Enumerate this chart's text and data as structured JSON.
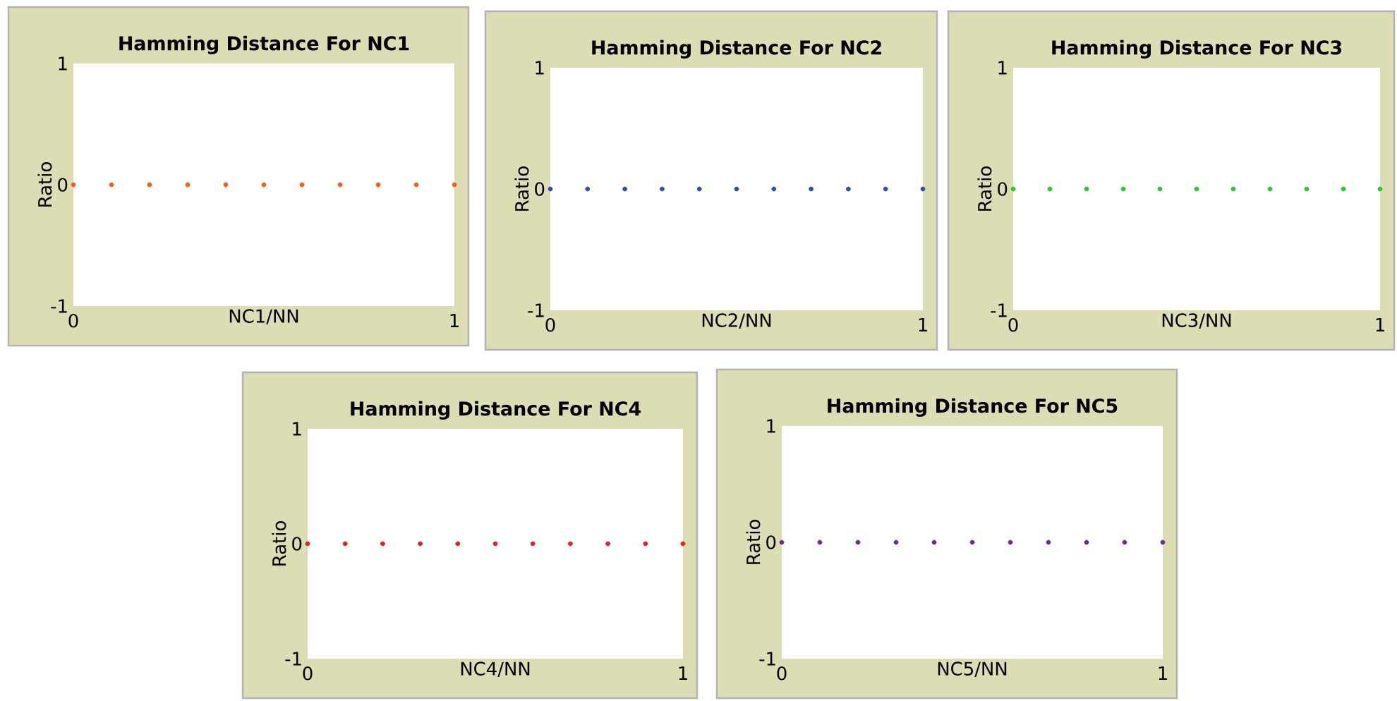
{
  "chart_data": [
    {
      "type": "scatter",
      "title": "Hamming Distance For NC1",
      "xlabel": "NC1/NN",
      "ylabel": "Ratio",
      "x": [
        0,
        0.1,
        0.2,
        0.3,
        0.4,
        0.5,
        0.6,
        0.7,
        0.8,
        0.9,
        1
      ],
      "series": [
        {
          "color": "#ff5a14",
          "values": [
            0,
            0,
            0,
            0,
            0,
            0,
            0,
            0,
            0,
            0,
            0
          ]
        }
      ],
      "xlim": [
        0,
        1
      ],
      "ylim": [
        -1,
        1
      ],
      "xticks": [
        0,
        1
      ],
      "yticks": [
        -1,
        0,
        1
      ]
    },
    {
      "type": "scatter",
      "title": "Hamming Distance For NC2",
      "xlabel": "NC2/NN",
      "ylabel": "Ratio",
      "x": [
        0,
        0.1,
        0.2,
        0.3,
        0.4,
        0.5,
        0.6,
        0.7,
        0.8,
        0.9,
        1
      ],
      "series": [
        {
          "color": "#2a4fb0",
          "values": [
            0,
            0,
            0,
            0,
            0,
            0,
            0,
            0,
            0,
            0,
            0
          ]
        }
      ],
      "xlim": [
        0,
        1
      ],
      "ylim": [
        -1,
        1
      ],
      "xticks": [
        0,
        1
      ],
      "yticks": [
        -1,
        0,
        1
      ]
    },
    {
      "type": "scatter",
      "title": "Hamming Distance For NC3",
      "xlabel": "NC3/NN",
      "ylabel": "Ratio",
      "x": [
        0,
        0.1,
        0.2,
        0.3,
        0.4,
        0.5,
        0.6,
        0.7,
        0.8,
        0.9,
        1
      ],
      "series": [
        {
          "color": "#22cc22",
          "values": [
            0,
            0,
            0,
            0,
            0,
            0,
            0,
            0,
            0,
            0,
            0
          ]
        }
      ],
      "xlim": [
        0,
        1
      ],
      "ylim": [
        -1,
        1
      ],
      "xticks": [
        0,
        1
      ],
      "yticks": [
        -1,
        0,
        1
      ]
    },
    {
      "type": "scatter",
      "title": "Hamming Distance For NC4",
      "xlabel": "NC4/NN",
      "ylabel": "Ratio",
      "x": [
        0,
        0.1,
        0.2,
        0.3,
        0.4,
        0.5,
        0.6,
        0.7,
        0.8,
        0.9,
        1
      ],
      "series": [
        {
          "color": "#e81e1e",
          "values": [
            0,
            0,
            0,
            0,
            0,
            0,
            0,
            0,
            0,
            0,
            0
          ]
        }
      ],
      "xlim": [
        0,
        1
      ],
      "ylim": [
        -1,
        1
      ],
      "xticks": [
        0,
        1
      ],
      "yticks": [
        -1,
        0,
        1
      ]
    },
    {
      "type": "scatter",
      "title": "Hamming Distance For NC5",
      "xlabel": "NC5/NN",
      "ylabel": "Ratio",
      "x": [
        0,
        0.1,
        0.2,
        0.3,
        0.4,
        0.5,
        0.6,
        0.7,
        0.8,
        0.9,
        1
      ],
      "series": [
        {
          "color": "#6a2a9a",
          "values": [
            0,
            0,
            0,
            0,
            0,
            0,
            0,
            0,
            0,
            0,
            0
          ]
        }
      ],
      "xlim": [
        0,
        1
      ],
      "ylim": [
        -1,
        1
      ],
      "xticks": [
        0,
        1
      ],
      "yticks": [
        -1,
        0,
        1
      ]
    }
  ]
}
